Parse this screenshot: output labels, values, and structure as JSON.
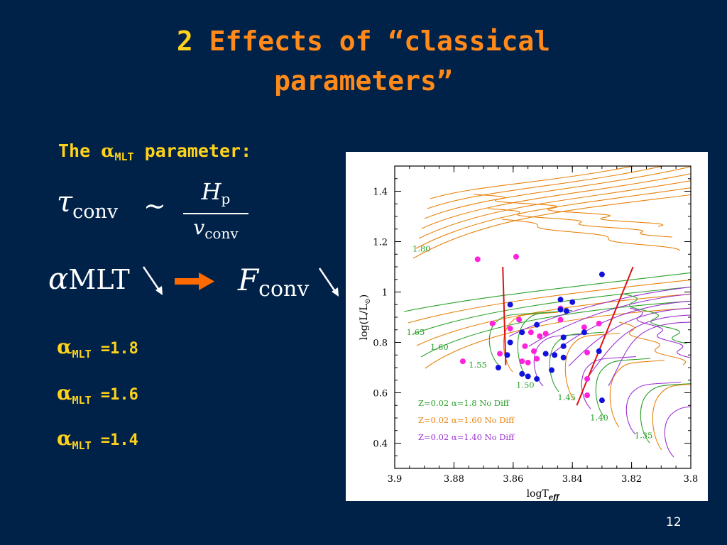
{
  "slide": {
    "title_number": "2",
    "title_line1": "Effects of “classical",
    "title_line2": "parameters”",
    "subtitle_prefix": "The ",
    "subtitle_alpha": "α",
    "subtitle_sub": "MLT",
    "subtitle_suffix": " parameter:",
    "eq_tau": "τ",
    "eq_tau_sub": "conv",
    "eq_sim": "∼",
    "eq_num": "H",
    "eq_num_sub": "p",
    "eq_den": "v",
    "eq_den_sub": "conv",
    "eq_alpha": "α",
    "eq_alpha_sub": "MLT",
    "eq_F": "F",
    "eq_F_sub": "conv",
    "alpha_values": [
      {
        "symbol": "α",
        "sub": "MLT",
        "value": " =1.8"
      },
      {
        "symbol": "α",
        "sub": "MLT",
        "value": " =1.6"
      },
      {
        "symbol": "α",
        "sub": "MLT",
        "value": " =1.4"
      }
    ],
    "page_number": "12",
    "colors": {
      "background": "#002248",
      "title_number": "#ffd21a",
      "title_text": "#ff8a1a",
      "text_yellow": "#ffd21a",
      "arrow": "#ff6a00"
    }
  },
  "chart_data": {
    "type": "line",
    "xlabel": "logT",
    "xlabel_sub": "eff",
    "ylabel": "log(L/L",
    "ylabel_sun": "⊙",
    "ylabel_end": ")",
    "xlim": [
      3.9,
      3.8
    ],
    "ylim": [
      0.3,
      1.5
    ],
    "x_ticks": [
      3.9,
      3.88,
      3.86,
      3.84,
      3.82,
      3.8
    ],
    "x_tick_labels": [
      "3.9",
      "3.88",
      "3.86",
      "3.84",
      "3.82",
      "3.8"
    ],
    "y_ticks": [
      0.4,
      0.6,
      0.8,
      1.0,
      1.2,
      1.4
    ],
    "y_tick_labels": [
      "0.4",
      "0.6",
      "0.8",
      "1",
      "1.2",
      "1.4"
    ],
    "legend": [
      {
        "text": "Z=0.02 α=1.8 No Diff",
        "color": "#2aa02a"
      },
      {
        "text": "Z=0.02 α=1.60 No Diff",
        "color": "#e8820c"
      },
      {
        "text": "Z=0.02 α=1.40 No Diff",
        "color": "#9b30d0"
      }
    ],
    "legend_position": "bottom-left",
    "mass_labels": [
      {
        "text": "1.80",
        "x": 3.894,
        "y": 1.16,
        "color": "#2aa02a"
      },
      {
        "text": "1.65",
        "x": 3.896,
        "y": 0.83,
        "color": "#2aa02a"
      },
      {
        "text": "1.60",
        "x": 3.888,
        "y": 0.77,
        "color": "#2aa02a"
      },
      {
        "text": "1.55",
        "x": 3.875,
        "y": 0.7,
        "color": "#2aa02a"
      },
      {
        "text": "1.50",
        "x": 3.859,
        "y": 0.62,
        "color": "#2aa02a"
      },
      {
        "text": "1.45",
        "x": 3.845,
        "y": 0.57,
        "color": "#2aa02a"
      },
      {
        "text": "1.40",
        "x": 3.834,
        "y": 0.49,
        "color": "#2aa02a"
      },
      {
        "text": "1.35",
        "x": 3.819,
        "y": 0.42,
        "color": "#2aa02a"
      }
    ],
    "instability_strip": [
      {
        "x": [
          3.8635,
          3.8625
        ],
        "y": [
          1.1,
          0.71
        ],
        "color": "#dd1111"
      },
      {
        "x": [
          3.8195,
          3.8385
        ],
        "y": [
          1.1,
          0.55
        ],
        "color": "#dd1111"
      }
    ],
    "blue_stars": [
      {
        "x": 3.83,
        "y": 1.07
      },
      {
        "x": 3.861,
        "y": 0.95
      },
      {
        "x": 3.844,
        "y": 0.97
      },
      {
        "x": 3.84,
        "y": 0.96
      },
      {
        "x": 3.844,
        "y": 0.93
      },
      {
        "x": 3.842,
        "y": 0.925
      },
      {
        "x": 3.852,
        "y": 0.87
      },
      {
        "x": 3.857,
        "y": 0.84
      },
      {
        "x": 3.836,
        "y": 0.84
      },
      {
        "x": 3.843,
        "y": 0.82
      },
      {
        "x": 3.861,
        "y": 0.8
      },
      {
        "x": 3.843,
        "y": 0.785
      },
      {
        "x": 3.831,
        "y": 0.765
      },
      {
        "x": 3.849,
        "y": 0.755
      },
      {
        "x": 3.846,
        "y": 0.75
      },
      {
        "x": 3.843,
        "y": 0.74
      },
      {
        "x": 3.862,
        "y": 0.75
      },
      {
        "x": 3.865,
        "y": 0.7
      },
      {
        "x": 3.847,
        "y": 0.69
      },
      {
        "x": 3.857,
        "y": 0.675
      },
      {
        "x": 3.855,
        "y": 0.665
      },
      {
        "x": 3.852,
        "y": 0.655
      },
      {
        "x": 3.83,
        "y": 0.57
      }
    ],
    "magenta_stars": [
      {
        "x": 3.872,
        "y": 1.13
      },
      {
        "x": 3.859,
        "y": 1.14
      },
      {
        "x": 3.844,
        "y": 0.935
      },
      {
        "x": 3.858,
        "y": 0.89
      },
      {
        "x": 3.844,
        "y": 0.89
      },
      {
        "x": 3.867,
        "y": 0.875
      },
      {
        "x": 3.861,
        "y": 0.855
      },
      {
        "x": 3.831,
        "y": 0.875
      },
      {
        "x": 3.836,
        "y": 0.86
      },
      {
        "x": 3.849,
        "y": 0.835
      },
      {
        "x": 3.854,
        "y": 0.84
      },
      {
        "x": 3.851,
        "y": 0.825
      },
      {
        "x": 3.856,
        "y": 0.785
      },
      {
        "x": 3.853,
        "y": 0.765
      },
      {
        "x": 3.8645,
        "y": 0.755
      },
      {
        "x": 3.852,
        "y": 0.735
      },
      {
        "x": 3.857,
        "y": 0.725
      },
      {
        "x": 3.855,
        "y": 0.72
      },
      {
        "x": 3.877,
        "y": 0.725
      },
      {
        "x": 3.835,
        "y": 0.76
      },
      {
        "x": 3.835,
        "y": 0.655
      },
      {
        "x": 3.835,
        "y": 0.59
      }
    ]
  }
}
